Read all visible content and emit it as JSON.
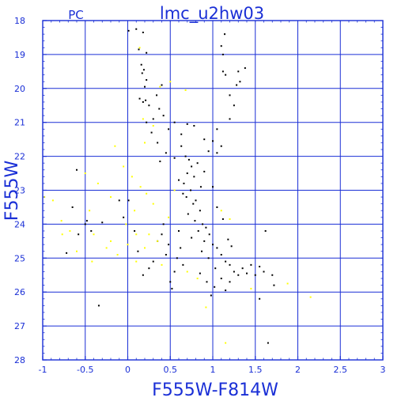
{
  "chart_data": {
    "type": "scatter",
    "title": "lmc_u2hw03",
    "corner_label": "PC",
    "xlabel": "F555W-F814W",
    "ylabel": "F555W",
    "xlim": [
      -1,
      3
    ],
    "ylim": [
      28,
      18
    ],
    "y_axis_inverted": true,
    "grid": true,
    "x_ticks": [
      -1,
      -0.5,
      0,
      0.5,
      1,
      1.5,
      2,
      2.5,
      3
    ],
    "x_tick_labels": [
      "-1",
      "-0.5",
      "0",
      "0.5",
      "1",
      "1.5",
      "2",
      "2.5",
      "3"
    ],
    "y_ticks": [
      18,
      19,
      20,
      21,
      22,
      23,
      24,
      25,
      26,
      27,
      28
    ],
    "y_tick_labels": [
      "18",
      "19",
      "20",
      "21",
      "22",
      "23",
      "24",
      "25",
      "26",
      "27",
      "28"
    ],
    "colors": {
      "axes": "#1a2fd6",
      "grid": "#1a2fd6",
      "primary_points": "#000000",
      "secondary_points": "#ffff00"
    },
    "series": [
      {
        "color": "#000000",
        "points": [
          [
            0.01,
            18.3
          ],
          [
            0.1,
            18.25
          ],
          [
            0.18,
            18.35
          ],
          [
            0.13,
            18.85
          ],
          [
            0.22,
            18.95
          ],
          [
            0.16,
            19.3
          ],
          [
            0.19,
            19.45
          ],
          [
            0.17,
            19.55
          ],
          [
            0.22,
            19.75
          ],
          [
            0.2,
            19.95
          ],
          [
            0.14,
            20.3
          ],
          [
            0.18,
            20.4
          ],
          [
            0.21,
            20.35
          ],
          [
            0.25,
            20.5
          ],
          [
            0.4,
            19.9
          ],
          [
            0.34,
            20.2
          ],
          [
            0.37,
            20.6
          ],
          [
            0.42,
            20.8
          ],
          [
            0.3,
            20.9
          ],
          [
            0.22,
            21.0
          ],
          [
            0.28,
            21.3
          ],
          [
            0.35,
            21.6
          ],
          [
            0.48,
            21.2
          ],
          [
            0.55,
            21.0
          ],
          [
            0.7,
            21.05
          ],
          [
            0.78,
            21.1
          ],
          [
            0.63,
            21.35
          ],
          [
            0.9,
            21.5
          ],
          [
            1.0,
            21.55
          ],
          [
            0.95,
            21.85
          ],
          [
            1.05,
            21.9
          ],
          [
            1.1,
            21.7
          ],
          [
            1.05,
            21.2
          ],
          [
            1.12,
            19.0
          ],
          [
            1.12,
            19.5
          ],
          [
            1.15,
            19.6
          ],
          [
            1.2,
            20.2
          ],
          [
            1.25,
            20.5
          ],
          [
            1.2,
            20.9
          ],
          [
            1.28,
            19.9
          ],
          [
            1.32,
            19.8
          ],
          [
            1.3,
            19.5
          ],
          [
            1.38,
            19.4
          ],
          [
            1.1,
            18.75
          ],
          [
            1.14,
            18.4
          ],
          [
            0.68,
            22.0
          ],
          [
            0.72,
            22.1
          ],
          [
            0.75,
            22.3
          ],
          [
            0.7,
            22.5
          ],
          [
            0.82,
            22.2
          ],
          [
            0.78,
            22.6
          ],
          [
            0.66,
            22.8
          ],
          [
            0.74,
            23.0
          ],
          [
            0.69,
            23.2
          ],
          [
            0.8,
            23.3
          ],
          [
            0.77,
            23.4
          ],
          [
            0.85,
            23.6
          ],
          [
            0.71,
            23.7
          ],
          [
            0.79,
            23.9
          ],
          [
            0.88,
            24.0
          ],
          [
            0.92,
            24.1
          ],
          [
            0.83,
            24.2
          ],
          [
            0.96,
            24.3
          ],
          [
            0.75,
            24.4
          ],
          [
            0.9,
            24.5
          ],
          [
            1.0,
            24.6
          ],
          [
            1.05,
            24.7
          ],
          [
            0.87,
            24.8
          ],
          [
            1.1,
            24.9
          ],
          [
            0.95,
            25.0
          ],
          [
            1.15,
            25.1
          ],
          [
            1.2,
            25.2
          ],
          [
            1.03,
            25.3
          ],
          [
            1.25,
            25.4
          ],
          [
            1.3,
            25.5
          ],
          [
            1.1,
            25.6
          ],
          [
            1.4,
            25.45
          ],
          [
            1.5,
            25.5
          ],
          [
            1.6,
            25.4
          ],
          [
            1.7,
            25.5
          ],
          [
            1.2,
            25.7
          ],
          [
            1.35,
            25.3
          ],
          [
            1.45,
            25.2
          ],
          [
            1.55,
            25.25
          ],
          [
            0.6,
            24.2
          ],
          [
            0.62,
            24.7
          ],
          [
            0.58,
            25.0
          ],
          [
            0.55,
            25.4
          ],
          [
            0.5,
            25.7
          ],
          [
            0.52,
            25.9
          ],
          [
            0.65,
            25.2
          ],
          [
            0.45,
            24.9
          ],
          [
            0.48,
            24.6
          ],
          [
            0.4,
            24.3
          ],
          [
            0.35,
            24.5
          ],
          [
            0.42,
            24.0
          ],
          [
            0.3,
            25.1
          ],
          [
            0.25,
            25.3
          ],
          [
            0.18,
            25.5
          ],
          [
            0.12,
            24.8
          ],
          [
            0.08,
            24.2
          ],
          [
            0.01,
            23.3
          ],
          [
            -0.05,
            23.8
          ],
          [
            -0.1,
            23.3
          ],
          [
            -0.3,
            23.95
          ],
          [
            -0.43,
            24.2
          ],
          [
            -0.5,
            24.0
          ],
          [
            -0.58,
            24.3
          ],
          [
            -0.6,
            22.4
          ],
          [
            -0.65,
            23.5
          ],
          [
            -0.72,
            24.85
          ],
          [
            -0.48,
            23.9
          ],
          [
            -0.34,
            26.4
          ],
          [
            1.62,
            24.2
          ],
          [
            1.72,
            25.8
          ],
          [
            1.15,
            25.95
          ],
          [
            0.98,
            26.1
          ],
          [
            1.55,
            26.2
          ],
          [
            1.65,
            27.5
          ],
          [
            1.0,
            22.9
          ],
          [
            1.05,
            23.5
          ],
          [
            1.12,
            23.85
          ],
          [
            1.18,
            24.45
          ],
          [
            1.22,
            24.65
          ],
          [
            0.85,
            25.45
          ],
          [
            0.93,
            25.7
          ],
          [
            1.02,
            25.85
          ],
          [
            0.6,
            22.7
          ],
          [
            0.65,
            23.1
          ],
          [
            0.9,
            22.45
          ],
          [
            0.86,
            22.9
          ],
          [
            0.63,
            21.7
          ],
          [
            0.45,
            21.9
          ],
          [
            0.55,
            22.05
          ],
          [
            0.38,
            22.15
          ]
        ]
      },
      {
        "color": "#ffff00",
        "points": [
          [
            0.14,
            18.8
          ],
          [
            0.38,
            19.95
          ],
          [
            0.5,
            19.8
          ],
          [
            0.68,
            20.05
          ],
          [
            0.18,
            20.9
          ],
          [
            0.3,
            21.1
          ],
          [
            0.2,
            21.6
          ],
          [
            -0.15,
            21.7
          ],
          [
            -0.05,
            22.3
          ],
          [
            0.05,
            22.6
          ],
          [
            0.15,
            22.9
          ],
          [
            0.22,
            23.1
          ],
          [
            0.3,
            23.4
          ],
          [
            0.08,
            23.6
          ],
          [
            -0.02,
            24.0
          ],
          [
            -0.2,
            23.2
          ],
          [
            -0.35,
            22.8
          ],
          [
            -0.45,
            23.6
          ],
          [
            -0.5,
            22.5
          ],
          [
            -0.68,
            24.2
          ],
          [
            -0.77,
            24.3
          ],
          [
            -0.78,
            23.9
          ],
          [
            -0.88,
            23.3
          ],
          [
            -0.98,
            23.2
          ],
          [
            -0.6,
            24.8
          ],
          [
            -0.42,
            25.1
          ],
          [
            -0.2,
            24.5
          ],
          [
            -0.12,
            24.9
          ],
          [
            -0.25,
            24.7
          ],
          [
            -0.4,
            24.3
          ],
          [
            0.1,
            24.3
          ],
          [
            0.2,
            24.7
          ],
          [
            0.25,
            24.3
          ],
          [
            0.35,
            24.5
          ],
          [
            0.4,
            25.2
          ],
          [
            0.48,
            23.8
          ],
          [
            0.55,
            23.0
          ],
          [
            0.1,
            25.1
          ],
          [
            0.0,
            24.6
          ],
          [
            1.1,
            23.6
          ],
          [
            1.2,
            23.85
          ],
          [
            1.45,
            25.9
          ],
          [
            1.88,
            25.75
          ],
          [
            2.15,
            26.15
          ],
          [
            1.15,
            27.5
          ],
          [
            0.92,
            26.45
          ],
          [
            0.7,
            25.4
          ],
          [
            0.82,
            25.6
          ]
        ]
      }
    ]
  }
}
